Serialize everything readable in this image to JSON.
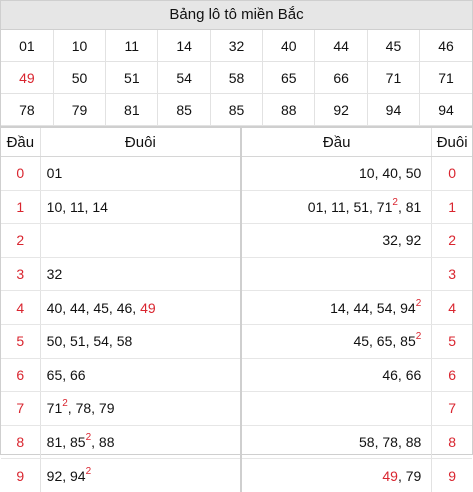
{
  "title": "Bảng lô tô miền Bắc",
  "numbers": [
    [
      "01",
      "10",
      "11",
      "14",
      "32",
      "40",
      "44",
      "45",
      "46"
    ],
    [
      "49",
      "50",
      "51",
      "54",
      "58",
      "65",
      "66",
      "71",
      "71"
    ],
    [
      "78",
      "79",
      "81",
      "85",
      "85",
      "88",
      "92",
      "94",
      "94"
    ]
  ],
  "highlighted_numbers": [
    "49"
  ],
  "headers": {
    "dau": "Đầu",
    "duoi": "Đuôi"
  },
  "rows": [
    {
      "dau": "0",
      "duoi": [
        {
          "t": "01"
        }
      ],
      "duoi_dau": [
        {
          "t": "10, 40, 50"
        }
      ],
      "digit_right": "0"
    },
    {
      "dau": "1",
      "duoi": [
        {
          "t": "10, 11, 14"
        }
      ],
      "duoi_dau": [
        {
          "t": "01, 11, 51, 71"
        },
        {
          "sup": "2"
        },
        {
          "t": ", 81"
        }
      ],
      "digit_right": "1"
    },
    {
      "dau": "2",
      "duoi": [],
      "duoi_dau": [
        {
          "t": "32, 92"
        }
      ],
      "digit_right": "2"
    },
    {
      "dau": "3",
      "duoi": [
        {
          "t": "32"
        }
      ],
      "duoi_dau": [],
      "digit_right": "3"
    },
    {
      "dau": "4",
      "duoi": [
        {
          "t": "40, 44, 45, 46, "
        },
        {
          "red": "49"
        }
      ],
      "duoi_dau": [
        {
          "t": "14, 44, 54, 94"
        },
        {
          "sup": "2"
        }
      ],
      "digit_right": "4"
    },
    {
      "dau": "5",
      "duoi": [
        {
          "t": "50, 51, 54, 58"
        }
      ],
      "duoi_dau": [
        {
          "t": "45, 65, 85"
        },
        {
          "sup": "2"
        }
      ],
      "digit_right": "5"
    },
    {
      "dau": "6",
      "duoi": [
        {
          "t": "65, 66"
        }
      ],
      "duoi_dau": [
        {
          "t": "46, 66"
        }
      ],
      "digit_right": "6"
    },
    {
      "dau": "7",
      "duoi": [
        {
          "t": "71"
        },
        {
          "sup": "2"
        },
        {
          "t": ", 78, 79"
        }
      ],
      "duoi_dau": [],
      "digit_right": "7"
    },
    {
      "dau": "8",
      "duoi": [
        {
          "t": "81, 85"
        },
        {
          "sup": "2"
        },
        {
          "t": ", 88"
        }
      ],
      "duoi_dau": [
        {
          "t": "58, 78, 88"
        }
      ],
      "digit_right": "8"
    },
    {
      "dau": "9",
      "duoi": [
        {
          "t": "92, 94"
        },
        {
          "sup": "2"
        }
      ],
      "duoi_dau": [
        {
          "red": "49"
        },
        {
          "t": ", 79"
        }
      ],
      "digit_right": "9"
    }
  ]
}
